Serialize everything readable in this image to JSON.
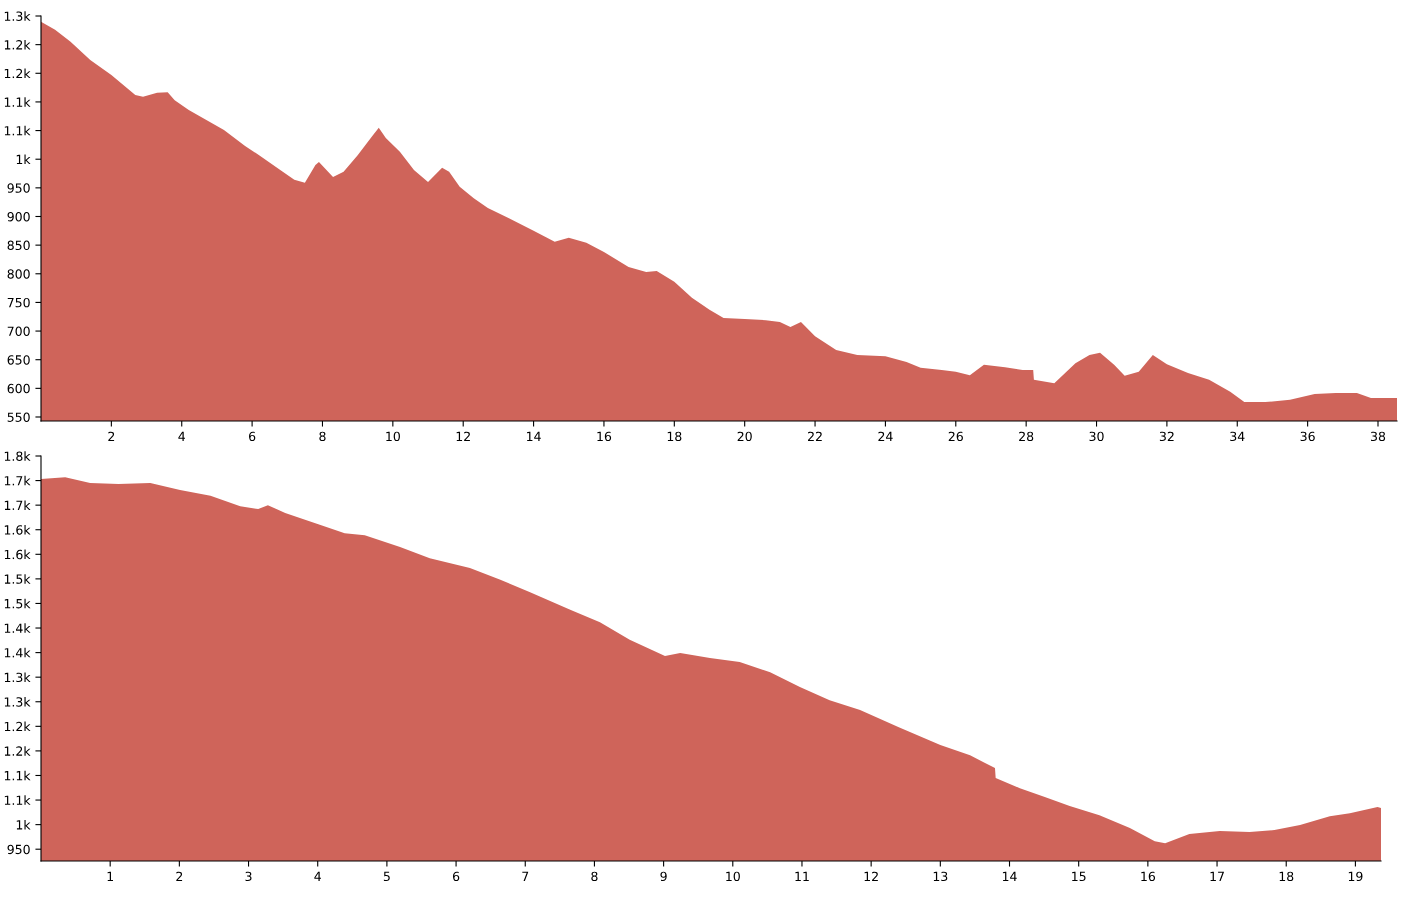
{
  "chart_data": [
    {
      "type": "area",
      "color": "#cf645a",
      "xlim": [
        0,
        38.54
      ],
      "xticks": [
        2,
        4,
        6,
        8,
        10,
        12,
        14,
        16,
        18,
        20,
        22,
        24,
        26,
        28,
        30,
        32,
        34,
        36,
        38
      ],
      "ylim": [
        543,
        1250
      ],
      "yticks": [
        550,
        600,
        650,
        700,
        750,
        800,
        850,
        900,
        950,
        {
          "value": 1000,
          "label": "1k"
        },
        {
          "value": 1050,
          "label": "1.1k"
        },
        {
          "value": 1100,
          "label": "1.1k"
        },
        {
          "value": 1150,
          "label": "1.2k"
        },
        {
          "value": 1200,
          "label": "1.2k"
        },
        {
          "value": 1250,
          "label": "1.3k"
        }
      ],
      "grid": false,
      "legend": false,
      "x": [
        0,
        0.4,
        0.84,
        1.4,
        2,
        2.68,
        2.9,
        3.3,
        3.6,
        3.8,
        4.2,
        4.6,
        5.2,
        5.8,
        6.2,
        6.8,
        7.2,
        7.5,
        7.8,
        7.9,
        8.3,
        8.6,
        9,
        9.4,
        9.6,
        9.8,
        10.2,
        10.6,
        11,
        11.4,
        11.6,
        11.9,
        12.3,
        12.7,
        13.3,
        14,
        14.6,
        15,
        15.5,
        16,
        16.7,
        17.2,
        17.5,
        18,
        18.5,
        19,
        19.4,
        20,
        20.6,
        21,
        21.3,
        21.6,
        22,
        22.6,
        23.2,
        24,
        24.6,
        25,
        25.6,
        26,
        26.4,
        26.8,
        27.4,
        27.9,
        28.2,
        28.22,
        28.8,
        29.4,
        29.8,
        30.1,
        30.5,
        30.8,
        31.2,
        31.6,
        32,
        32.6,
        33.2,
        33.8,
        34.2,
        34.8,
        35.5,
        36.2,
        36.8,
        37.4,
        37.8,
        38.54
      ],
      "values": [
        1240,
        1226,
        1205,
        1173,
        1147,
        1112,
        1109,
        1116,
        1117,
        1103,
        1086,
        1072,
        1051,
        1023,
        1007,
        981,
        964,
        959,
        990,
        995,
        969,
        978,
        1007,
        1039,
        1055,
        1037,
        1013,
        981,
        960,
        985,
        978,
        952,
        932,
        915,
        897,
        875,
        856,
        863,
        854,
        838,
        812,
        803,
        805,
        786,
        758,
        737,
        723,
        721,
        719,
        716,
        707,
        716,
        691,
        667,
        658,
        656,
        646,
        636,
        632,
        629,
        623,
        641,
        637,
        632,
        632,
        615,
        609,
        644,
        658,
        662,
        641,
        622,
        629,
        658,
        642,
        627,
        615,
        594,
        576,
        576,
        580,
        590,
        592,
        592,
        583,
        583
      ]
    },
    {
      "type": "area",
      "color": "#cf645a",
      "xlim": [
        0,
        19.37
      ],
      "xticks": [
        1,
        2,
        3,
        4,
        5,
        6,
        7,
        8,
        9,
        10,
        11,
        12,
        13,
        14,
        15,
        16,
        17,
        18,
        19
      ],
      "ylim": [
        926,
        1750
      ],
      "yticks": [
        950,
        {
          "value": 1000,
          "label": "1k"
        },
        {
          "value": 1050,
          "label": "1.1k"
        },
        {
          "value": 1100,
          "label": "1.1k"
        },
        {
          "value": 1150,
          "label": "1.2k"
        },
        {
          "value": 1200,
          "label": "1.2k"
        },
        {
          "value": 1250,
          "label": "1.3k"
        },
        {
          "value": 1300,
          "label": "1.3k"
        },
        {
          "value": 1350,
          "label": "1.4k"
        },
        {
          "value": 1400,
          "label": "1.4k"
        },
        {
          "value": 1450,
          "label": "1.5k"
        },
        {
          "value": 1500,
          "label": "1.5k"
        },
        {
          "value": 1550,
          "label": "1.6k"
        },
        {
          "value": 1600,
          "label": "1.6k"
        },
        {
          "value": 1650,
          "label": "1.7k"
        },
        {
          "value": 1700,
          "label": "1.7k"
        },
        {
          "value": 1750,
          "label": "1.8k"
        }
      ],
      "grid": false,
      "legend": false,
      "x": [
        0,
        0.35,
        0.71,
        1.12,
        1.58,
        2.01,
        2.45,
        2.88,
        3.14,
        3.28,
        3.53,
        4.03,
        4.39,
        4.68,
        5.19,
        5.62,
        6.2,
        6.64,
        7.07,
        7.65,
        8.08,
        8.51,
        9.02,
        9.24,
        9.67,
        10.1,
        10.54,
        10.97,
        11.4,
        11.84,
        12.4,
        13,
        13.43,
        13.79,
        13.8,
        14.15,
        14.51,
        14.87,
        15.3,
        15.74,
        16.1,
        16.25,
        16.6,
        17.04,
        17.47,
        17.83,
        18.2,
        18.63,
        18.92,
        19.32,
        19.37
      ],
      "values": [
        1703,
        1707,
        1695,
        1693,
        1695,
        1681,
        1669,
        1648,
        1642,
        1650,
        1634,
        1610,
        1593,
        1589,
        1565,
        1542,
        1522,
        1498,
        1473,
        1437,
        1412,
        1376,
        1343,
        1349,
        1339,
        1331,
        1310,
        1280,
        1253,
        1233,
        1198,
        1162,
        1141,
        1115,
        1095,
        1074,
        1056,
        1038,
        1019,
        993,
        966,
        962,
        981,
        987,
        985,
        989,
        999,
        1017,
        1023,
        1036,
        1034
      ]
    }
  ]
}
